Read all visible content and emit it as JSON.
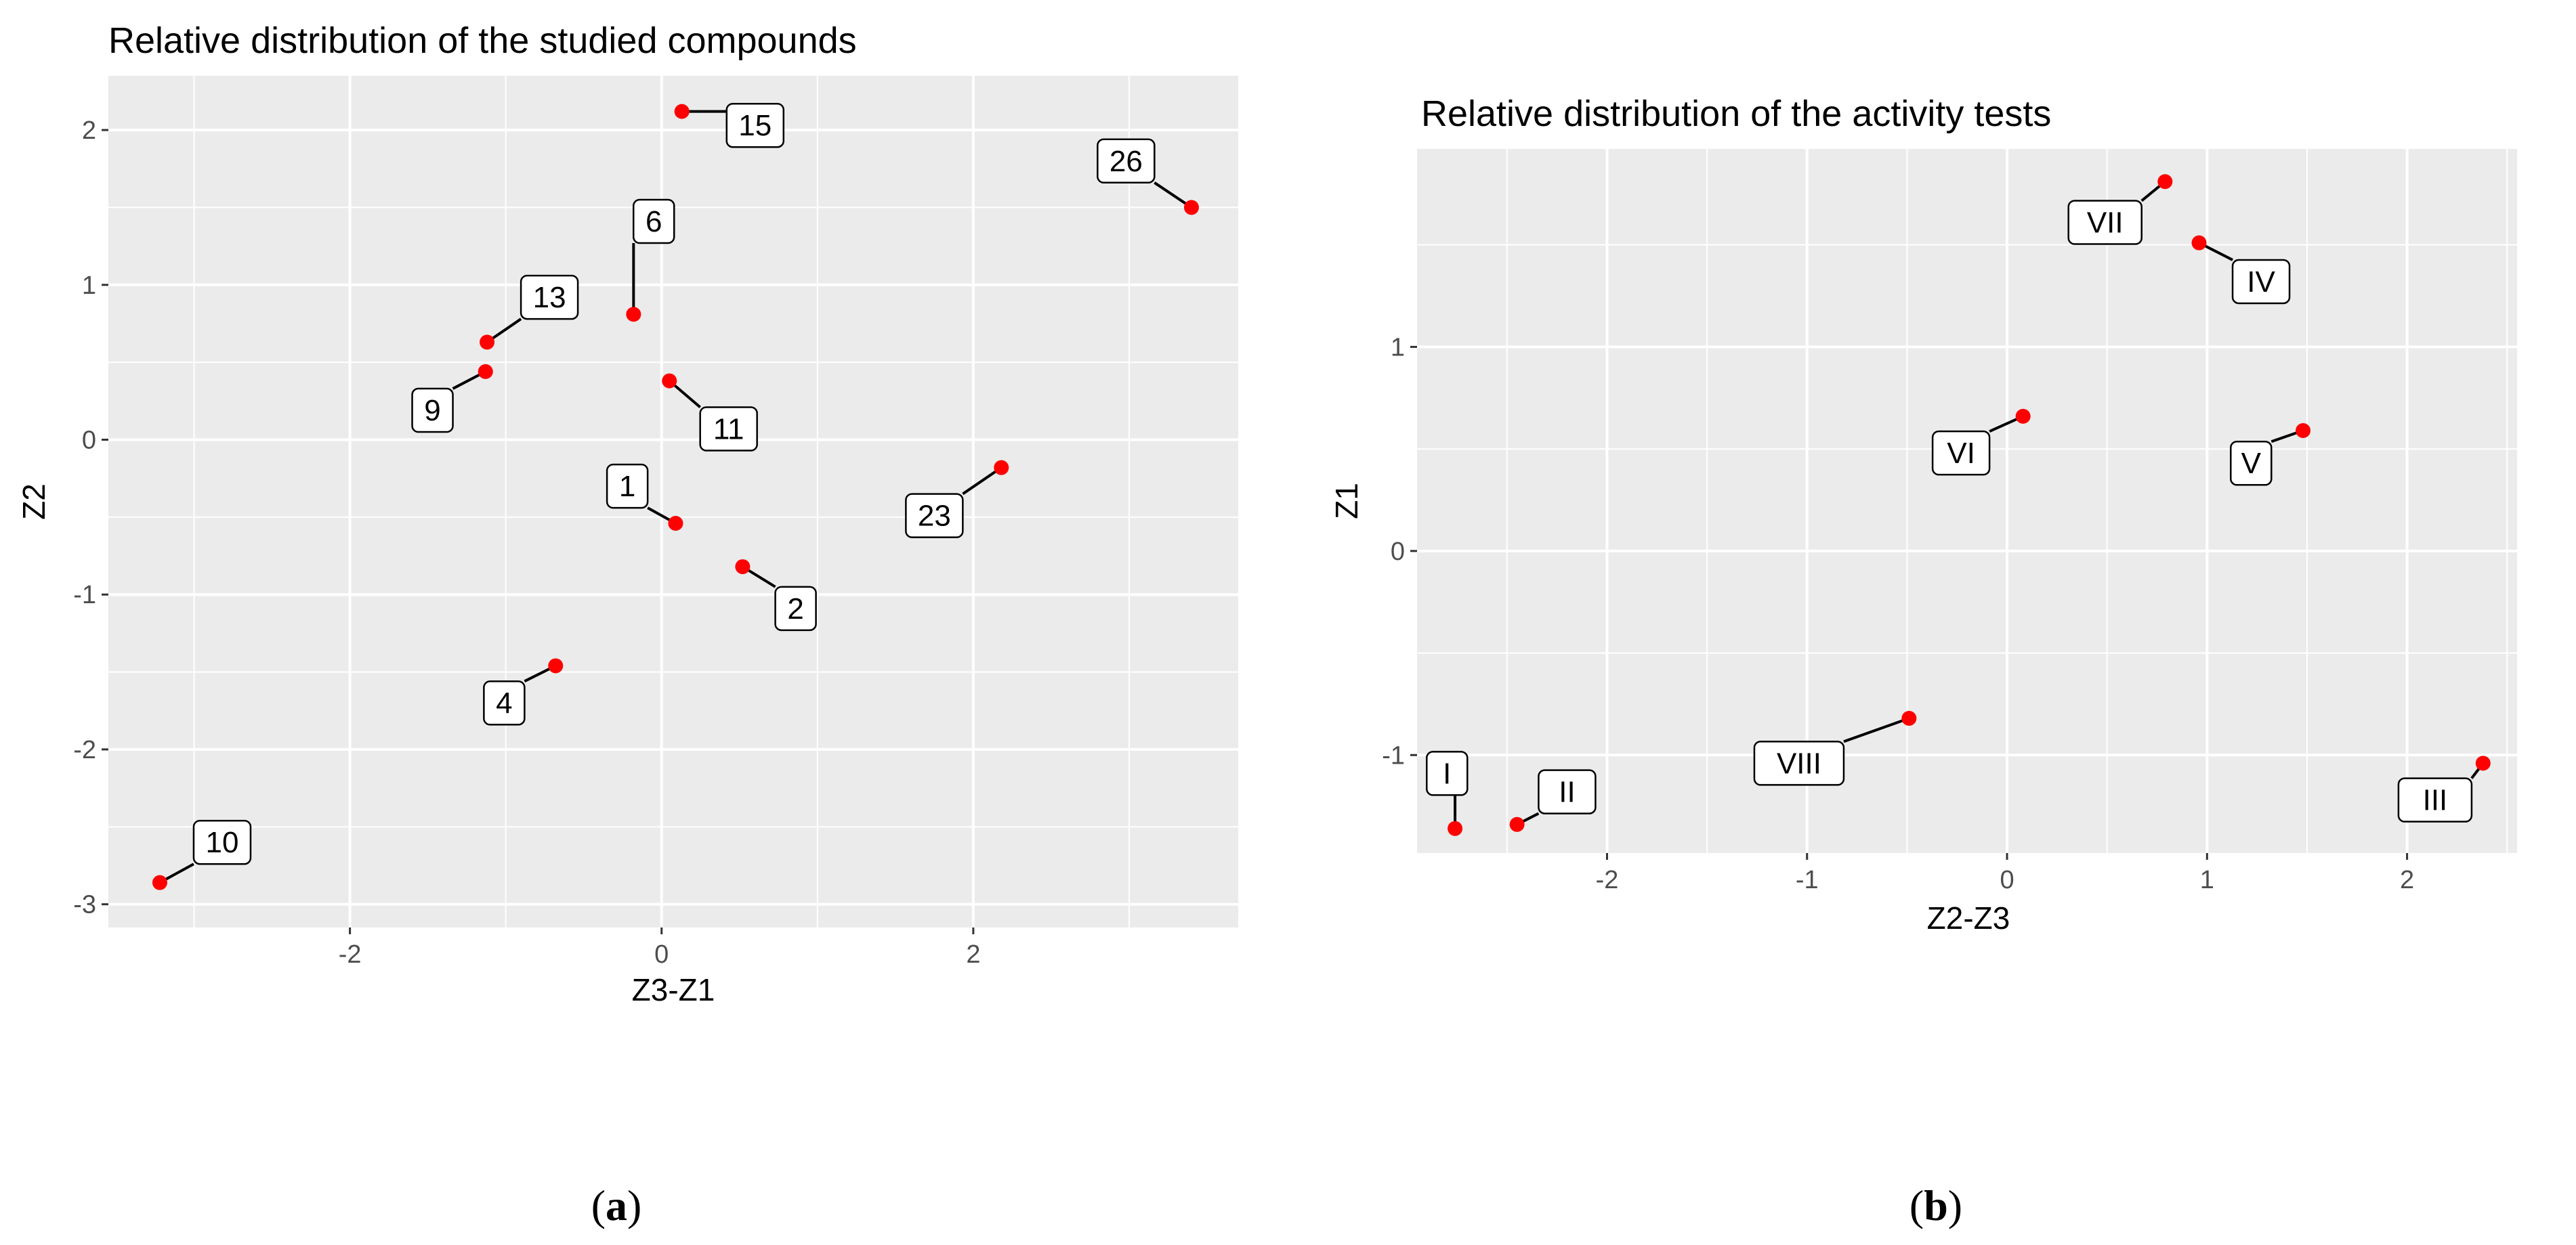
{
  "chart_data": [
    {
      "id": "a",
      "type": "scatter",
      "title": "Relative distribution of the studied compounds",
      "xlabel": "Z3-Z1",
      "ylabel": "Z2",
      "xlim": [
        -3.55,
        3.7
      ],
      "ylim": [
        -3.15,
        2.35
      ],
      "x_ticks": [
        -2,
        0,
        2
      ],
      "x_tick_labels": [
        "-2",
        "0",
        "2"
      ],
      "y_ticks": [
        2,
        1,
        0,
        -1,
        -2,
        -3
      ],
      "y_tick_labels": [
        "2",
        "1",
        "0",
        "-1",
        "-2",
        "-3"
      ],
      "grid": true,
      "point_color": "#ff0000",
      "panel_background": "#ebebeb",
      "points": [
        {
          "label": "15",
          "x": 0.13,
          "y": 2.12,
          "lx": 0.6,
          "ly": 2.03
        },
        {
          "label": "26",
          "x": 3.4,
          "y": 1.5,
          "lx": 2.98,
          "ly": 1.8
        },
        {
          "label": "6",
          "x": -0.18,
          "y": 0.81,
          "lx": -0.05,
          "ly": 1.41
        },
        {
          "label": "13",
          "x": -1.12,
          "y": 0.63,
          "lx": -0.72,
          "ly": 0.92
        },
        {
          "label": "9",
          "x": -1.13,
          "y": 0.44,
          "lx": -1.47,
          "ly": 0.19
        },
        {
          "label": "11",
          "x": 0.05,
          "y": 0.38,
          "lx": 0.43,
          "ly": 0.07
        },
        {
          "label": "1",
          "x": 0.09,
          "y": -0.54,
          "lx": -0.22,
          "ly": -0.3
        },
        {
          "label": "23",
          "x": 2.18,
          "y": -0.18,
          "lx": 1.75,
          "ly": -0.49
        },
        {
          "label": "2",
          "x": 0.52,
          "y": -0.82,
          "lx": 0.86,
          "ly": -1.09
        },
        {
          "label": "4",
          "x": -0.68,
          "y": -1.46,
          "lx": -1.01,
          "ly": -1.7
        },
        {
          "label": "10",
          "x": -3.22,
          "y": -2.86,
          "lx": -2.82,
          "ly": -2.6
        }
      ],
      "caption_label": "a"
    },
    {
      "id": "b",
      "type": "scatter",
      "title": "Relative distribution of the activity tests",
      "xlabel": "Z2-Z3",
      "ylabel": "Z1",
      "xlim": [
        -2.95,
        2.55
      ],
      "ylim": [
        -1.48,
        1.97
      ],
      "x_ticks": [
        -2,
        -1,
        0,
        1,
        2
      ],
      "x_tick_labels": [
        "-2",
        "-1",
        "0",
        "1",
        "2"
      ],
      "y_ticks": [
        1,
        0,
        -1
      ],
      "y_tick_labels": [
        "1",
        "0",
        "-1"
      ],
      "grid": true,
      "point_color": "#ff0000",
      "panel_background": "#ebebeb",
      "points": [
        {
          "label": "VII",
          "x": 0.79,
          "y": 1.81,
          "lx": 0.49,
          "ly": 1.61
        },
        {
          "label": "IV",
          "x": 0.96,
          "y": 1.51,
          "lx": 1.27,
          "ly": 1.32
        },
        {
          "label": "VI",
          "x": 0.08,
          "y": 0.66,
          "lx": -0.23,
          "ly": 0.48
        },
        {
          "label": "V",
          "x": 1.48,
          "y": 0.59,
          "lx": 1.22,
          "ly": 0.43
        },
        {
          "label": "VIII",
          "x": -0.49,
          "y": -0.82,
          "lx": -1.04,
          "ly": -1.04
        },
        {
          "label": "I",
          "x": -2.76,
          "y": -1.36,
          "lx": -2.8,
          "ly": -1.09
        },
        {
          "label": "II",
          "x": -2.45,
          "y": -1.34,
          "lx": -2.2,
          "ly": -1.18
        },
        {
          "label": "III",
          "x": 2.38,
          "y": -1.04,
          "lx": 2.14,
          "ly": -1.22
        }
      ],
      "caption_label": "b"
    }
  ]
}
